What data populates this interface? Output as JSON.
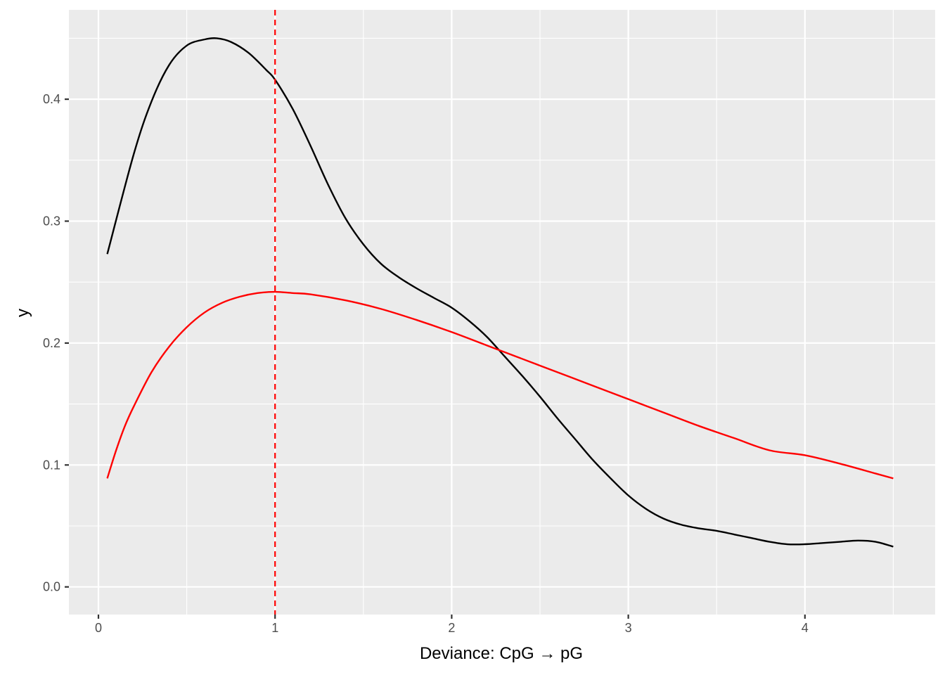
{
  "chart_data": {
    "type": "line",
    "title": "",
    "xlabel": "Deviance: CpG → pG",
    "ylabel": "y",
    "xlim": [
      -0.17,
      4.72
    ],
    "ylim": [
      -0.0225,
      0.4725
    ],
    "x_ticks": [
      0,
      1,
      2,
      3,
      4
    ],
    "x_tick_labels": [
      "0",
      "1",
      "2",
      "3",
      "4"
    ],
    "x_minor_ticks": [
      0.5,
      1.5,
      2.5,
      3.5,
      4.5
    ],
    "y_ticks": [
      0.0,
      0.1,
      0.2,
      0.3,
      0.4
    ],
    "y_tick_labels": [
      "0.0",
      "0.1",
      "0.2",
      "0.3",
      "0.4"
    ],
    "y_minor_ticks": [
      0.05,
      0.15,
      0.25,
      0.35,
      0.45
    ],
    "grid": true,
    "panel_background": "#ebebeb",
    "grid_color": "#ffffff",
    "series": [
      {
        "color": "#000000",
        "x": [
          0.05,
          0.2,
          0.3,
          0.4,
          0.5,
          0.6,
          0.67,
          0.75,
          0.85,
          0.95,
          1.0,
          1.1,
          1.2,
          1.3,
          1.4,
          1.5,
          1.6,
          1.7,
          1.8,
          1.9,
          2.0,
          2.1,
          2.2,
          2.3,
          2.4,
          2.5,
          2.6,
          2.7,
          2.8,
          2.9,
          3.0,
          3.1,
          3.2,
          3.3,
          3.4,
          3.5,
          3.6,
          3.7,
          3.8,
          3.9,
          4.0,
          4.1,
          4.2,
          4.3,
          4.4,
          4.5
        ],
        "y": [
          0.273,
          0.355,
          0.398,
          0.428,
          0.444,
          0.449,
          0.45,
          0.447,
          0.438,
          0.424,
          0.416,
          0.392,
          0.362,
          0.33,
          0.302,
          0.281,
          0.265,
          0.254,
          0.245,
          0.237,
          0.229,
          0.218,
          0.205,
          0.189,
          0.173,
          0.156,
          0.138,
          0.121,
          0.104,
          0.089,
          0.075,
          0.064,
          0.056,
          0.051,
          0.048,
          0.046,
          0.043,
          0.04,
          0.037,
          0.035,
          0.035,
          0.036,
          0.037,
          0.038,
          0.037,
          0.033
        ]
      },
      {
        "color": "#ff0000",
        "x": [
          0.05,
          0.1,
          0.15,
          0.2,
          0.3,
          0.4,
          0.5,
          0.6,
          0.7,
          0.8,
          0.9,
          1.0,
          1.1,
          1.2,
          1.4,
          1.6,
          1.8,
          2.0,
          2.2,
          2.4,
          2.6,
          2.8,
          3.0,
          3.2,
          3.4,
          3.6,
          3.8,
          4.0,
          4.2,
          4.4,
          4.5
        ],
        "y": [
          0.089,
          0.112,
          0.132,
          0.148,
          0.176,
          0.197,
          0.213,
          0.225,
          0.233,
          0.238,
          0.241,
          0.242,
          0.241,
          0.24,
          0.235,
          0.228,
          0.219,
          0.209,
          0.198,
          0.187,
          0.176,
          0.165,
          0.154,
          0.143,
          0.132,
          0.122,
          0.112,
          0.108,
          0.101,
          0.093,
          0.089
        ]
      }
    ],
    "vlines": [
      {
        "x": 1,
        "color": "#ff0000",
        "linetype": "dashed"
      }
    ]
  }
}
